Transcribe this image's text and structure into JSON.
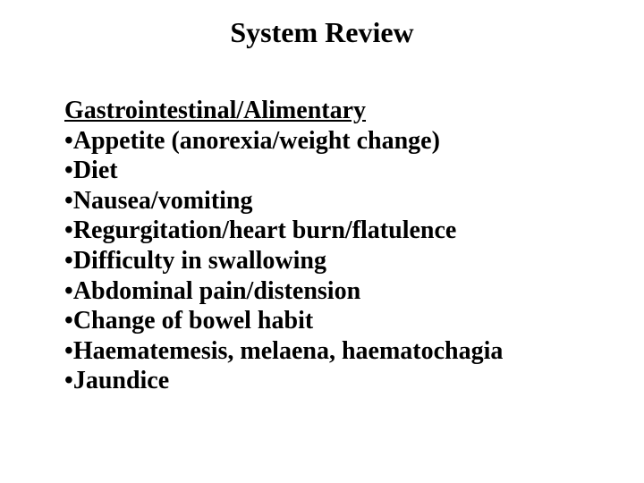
{
  "slide": {
    "title": "System Review",
    "section_heading": "Gastrointestinal/Alimentary",
    "bullet_char": "•",
    "items": [
      "Appetite (anorexia/weight change)",
      "Diet",
      "Nausea/vomiting",
      "Regurgitation/heart burn/flatulence",
      "Difficulty in swallowing",
      "Abdominal pain/distension",
      "Change of bowel habit",
      "Haematemesis, melaena, haematochagia",
      "Jaundice"
    ]
  },
  "style": {
    "background_color": "#ffffff",
    "text_color": "#000000",
    "title_fontsize": 32,
    "body_fontsize": 28,
    "font_family": "Times New Roman"
  }
}
